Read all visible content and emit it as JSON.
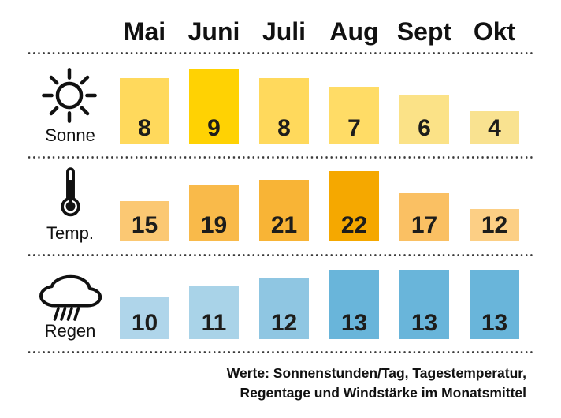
{
  "header": {
    "months": [
      "Mai",
      "Juni",
      "Juli",
      "Aug",
      "Sept",
      "Okt"
    ]
  },
  "rows": [
    {
      "id": "sonne",
      "label": "Sonne",
      "icon": "sun-icon",
      "values": [
        8,
        9,
        8,
        7,
        6,
        4
      ],
      "colors": [
        "#FFD95C",
        "#FFD203",
        "#FFD95C",
        "#FFDC66",
        "#FBE287",
        "#F9E290"
      ]
    },
    {
      "id": "temp",
      "label": "Temp.",
      "icon": "thermometer-icon",
      "values": [
        15,
        19,
        21,
        22,
        17,
        12
      ],
      "colors": [
        "#FBC873",
        "#F9BA4A",
        "#F8B436",
        "#F5A800",
        "#FAC063",
        "#FCCF85"
      ]
    },
    {
      "id": "regen",
      "label": "Regen",
      "icon": "rain-cloud-icon",
      "values": [
        10,
        11,
        12,
        13,
        13,
        13
      ],
      "colors": [
        "#AFD5EA",
        "#A9D3E8",
        "#8FC6E2",
        "#69B5DA",
        "#69B5DA",
        "#69B5DA"
      ]
    }
  ],
  "footer": {
    "line1": "Werte: Sonnenstunden/Tag, Tagestemperatur,",
    "line2": "Regentage und Windstärke im Monatsmittel"
  },
  "chart_data": {
    "type": "bar",
    "categories": [
      "Mai",
      "Juni",
      "Juli",
      "Aug",
      "Sept",
      "Okt"
    ],
    "series": [
      {
        "name": "Sonne",
        "values": [
          8,
          9,
          8,
          7,
          6,
          4
        ]
      },
      {
        "name": "Temp.",
        "values": [
          15,
          19,
          21,
          22,
          17,
          12
        ]
      },
      {
        "name": "Regen",
        "values": [
          10,
          11,
          12,
          13,
          13,
          13
        ]
      }
    ],
    "title": "",
    "xlabel": "",
    "ylabel": "",
    "grid": false,
    "legend_position": "left-icon-column",
    "annotations": "Werte: Sonnenstunden/Tag, Tagestemperatur, Regentage und Windstärke im Monatsmittel"
  }
}
